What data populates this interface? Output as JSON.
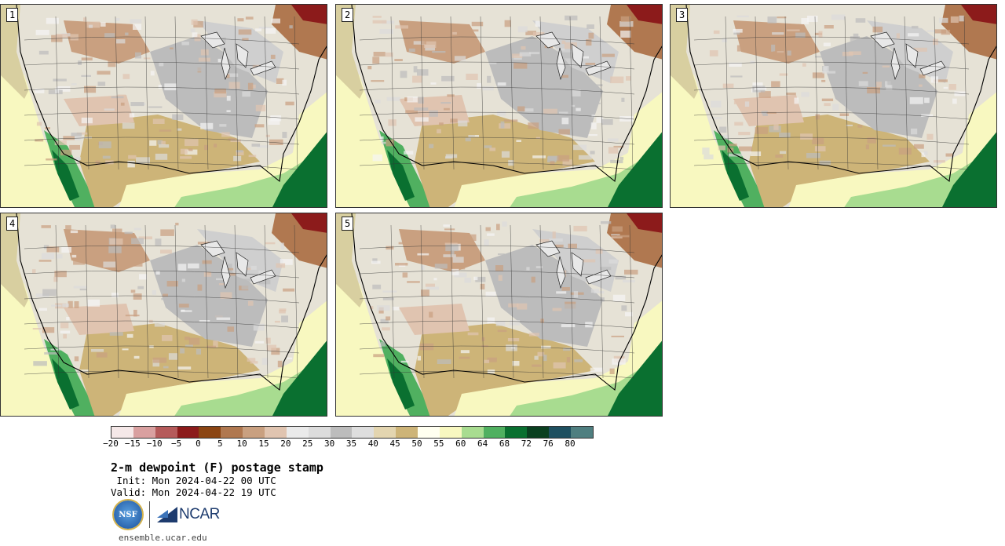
{
  "panels": [
    {
      "label": "1"
    },
    {
      "label": "2"
    },
    {
      "label": "3"
    },
    {
      "label": "4"
    },
    {
      "label": "5"
    }
  ],
  "colorbar": {
    "colors": [
      "#f5e8e8",
      "#d9a0a0",
      "#b55a5a",
      "#8c1b1b",
      "#8b4513",
      "#b07850",
      "#c9a080",
      "#e0c4b0",
      "#eaeaea",
      "#dcdcdc",
      "#bcbcbc",
      "#dedede",
      "#e3d5b0",
      "#cdb478",
      "#fffff0",
      "#f8f8c0",
      "#a8dc90",
      "#50b060",
      "#0a7030",
      "#0a4020",
      "#1e5060",
      "#4f7f80"
    ],
    "tick_labels": [
      "−20",
      "−15",
      "−10",
      "−5",
      "0",
      "5",
      "10",
      "15",
      "20",
      "25",
      "30",
      "35",
      "40",
      "45",
      "50",
      "55",
      "60",
      "64",
      "68",
      "72",
      "76",
      "80"
    ]
  },
  "title": "2-m dewpoint (F) postage stamp",
  "init": " Init: Mon 2024-04-22 00 UTC",
  "valid": "Valid: Mon 2024-04-22 19 UTC",
  "logos": {
    "nsf": "NSF",
    "ncar": "NCAR"
  },
  "url": "ensemble.ucar.edu"
}
